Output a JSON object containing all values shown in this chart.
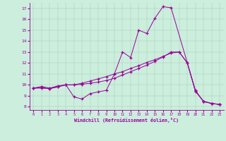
{
  "xlabel": "Windchill (Refroidissement éolien,°C)",
  "bg_color": "#cceedd",
  "line_color": "#990099",
  "xlim_min": 0,
  "xlim_max": 23,
  "ylim_min": 8,
  "ylim_max": 17,
  "xticks": [
    0,
    1,
    2,
    3,
    4,
    5,
    6,
    7,
    8,
    9,
    10,
    11,
    12,
    13,
    14,
    15,
    16,
    17,
    18,
    19,
    20,
    21,
    22,
    23
  ],
  "yticks": [
    8,
    9,
    10,
    11,
    12,
    13,
    14,
    15,
    16,
    17
  ],
  "line1_x": [
    0,
    1,
    2,
    3,
    4,
    5,
    6,
    7,
    8,
    9,
    10,
    11,
    12,
    13,
    14,
    15,
    16,
    17,
    20,
    21,
    22,
    23
  ],
  "line1_y": [
    9.7,
    9.85,
    9.7,
    9.9,
    10.0,
    8.9,
    8.7,
    9.2,
    9.35,
    9.5,
    11.0,
    13.0,
    12.5,
    15.0,
    14.7,
    16.1,
    17.15,
    17.05,
    9.5,
    8.45,
    8.3,
    8.2
  ],
  "line2_x": [
    0,
    1,
    2,
    3,
    4,
    5,
    6,
    7,
    8,
    9,
    10,
    11,
    12,
    13,
    14,
    15,
    16,
    17,
    18,
    19,
    20,
    21,
    22,
    23
  ],
  "line2_y": [
    9.7,
    9.7,
    9.65,
    9.8,
    10.0,
    10.0,
    10.15,
    10.35,
    10.55,
    10.75,
    11.0,
    11.2,
    11.5,
    11.75,
    12.05,
    12.3,
    12.6,
    12.9,
    13.0,
    12.0,
    9.4,
    8.5,
    8.3,
    8.2
  ],
  "line3_x": [
    0,
    1,
    2,
    3,
    4,
    5,
    6,
    7,
    8,
    9,
    10,
    11,
    12,
    13,
    14,
    15,
    16,
    17,
    18,
    19,
    20,
    21,
    22,
    23
  ],
  "line3_y": [
    9.7,
    9.75,
    9.65,
    9.85,
    10.0,
    10.0,
    10.05,
    10.15,
    10.25,
    10.4,
    10.6,
    10.9,
    11.2,
    11.5,
    11.8,
    12.15,
    12.55,
    13.0,
    13.0,
    12.0,
    9.45,
    8.5,
    8.3,
    8.2
  ]
}
